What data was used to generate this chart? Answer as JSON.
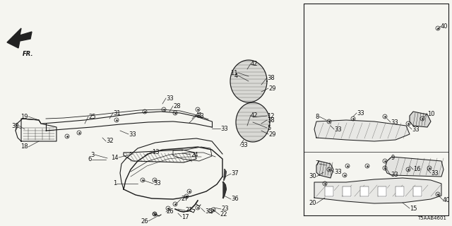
{
  "bg_color": "#f5f5f0",
  "diagram_code": "T5AAB4601",
  "line_color": "#1a1a1a",
  "text_color": "#111111",
  "font_size": 6.0,
  "label_font_size": 5.8
}
